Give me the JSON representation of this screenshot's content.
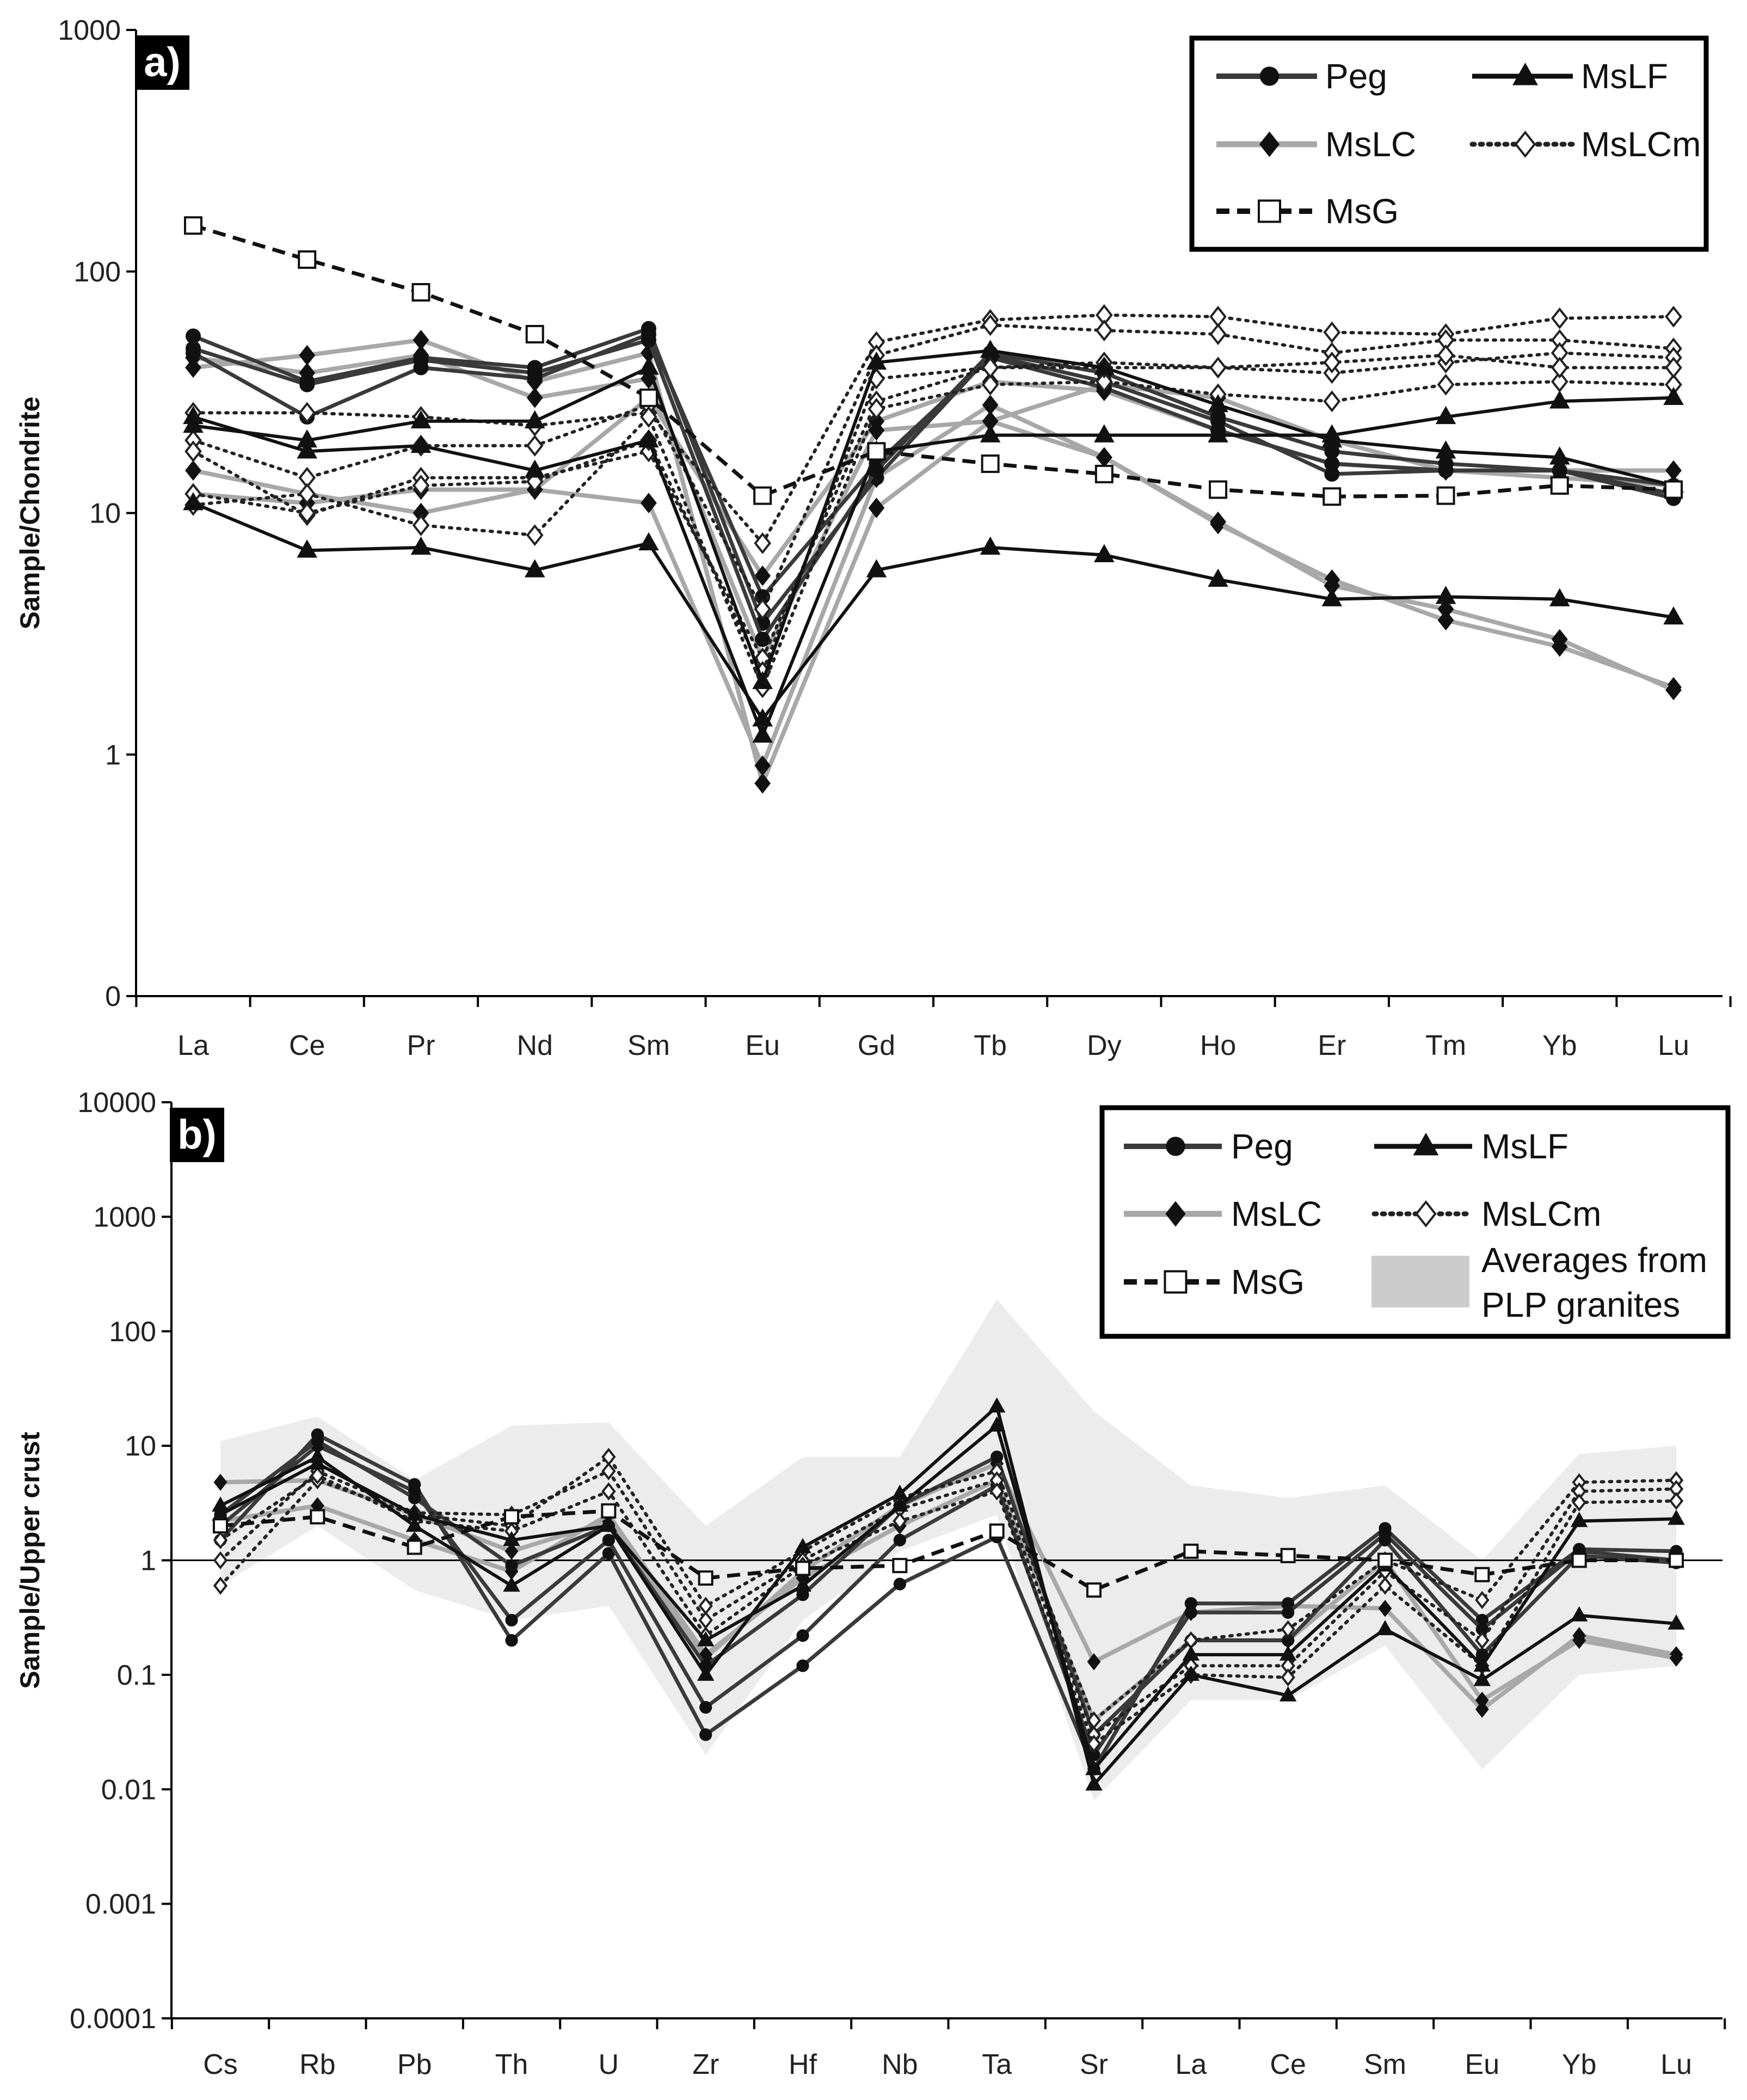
{
  "chart_data": [
    {
      "type": "line",
      "panel_label": "a)",
      "title": "",
      "xlabel": "",
      "ylabel": "Sample/Chondrite",
      "yscale": "log",
      "ylim": [
        0.1,
        1000
      ],
      "ytick_values": [
        0.1,
        1,
        10,
        100,
        1000
      ],
      "ytick_labels": [
        "0",
        "1",
        "10",
        "100",
        "1000"
      ],
      "categories": [
        "La",
        "Ce",
        "Pr",
        "Nd",
        "Sm",
        "Eu",
        "Gd",
        "Tb",
        "Dy",
        "Ho",
        "Er",
        "Tm",
        "Yb",
        "Lu"
      ],
      "legend": {
        "position": "top-right",
        "entries": [
          {
            "name": "Peg",
            "style": "peg"
          },
          {
            "name": "MsLF",
            "style": "mslf"
          },
          {
            "name": "MsLC",
            "style": "mslc"
          },
          {
            "name": "MsLCm",
            "style": "mslcm"
          },
          {
            "name": "MsG",
            "style": "msg"
          }
        ]
      },
      "series": [
        {
          "name": "Peg",
          "group": "peg",
          "values": [
            54,
            35,
            44,
            40,
            58,
            3.5,
            14,
            45,
            35,
            24,
            14.5,
            15,
            15,
            11.5
          ]
        },
        {
          "name": "Peg",
          "group": "peg",
          "values": [
            46,
            25,
            40,
            36,
            55,
            4.5,
            16,
            44,
            33,
            22,
            16,
            15,
            15,
            12
          ]
        },
        {
          "name": "Peg",
          "group": "peg",
          "values": [
            48,
            34,
            43,
            38,
            52,
            3.0,
            15,
            46,
            38,
            25,
            18,
            16,
            15,
            13
          ]
        },
        {
          "name": "MsLF",
          "group": "mslf",
          "values": [
            11,
            7,
            7.2,
            5.8,
            7.5,
            1.4,
            5.8,
            7.2,
            6.7,
            5.3,
            4.4,
            4.5,
            4.4,
            3.7
          ]
        },
        {
          "name": "MsLF",
          "group": "mslf",
          "values": [
            25,
            18,
            19,
            15,
            20,
            1.2,
            18,
            21,
            21,
            21,
            21,
            25,
            29,
            30
          ]
        },
        {
          "name": "MsLF",
          "group": "mslf",
          "values": [
            23,
            20,
            24,
            24,
            40,
            2.0,
            42,
            47,
            40,
            28,
            20,
            18,
            17,
            13
          ]
        },
        {
          "name": "MsLC",
          "group": "mslc",
          "values": [
            40,
            45,
            52,
            35,
            46,
            0.76,
            10.5,
            24,
            17,
            9,
            5.3,
            3.6,
            2.8,
            1.9
          ]
        },
        {
          "name": "MsLC",
          "group": "mslc",
          "values": [
            15,
            12,
            10,
            12.5,
            11,
            0.9,
            14,
            28,
            17,
            9.2,
            5.0,
            4.0,
            3.0,
            1.85
          ]
        },
        {
          "name": "MsLC",
          "group": "mslc",
          "values": [
            12,
            11,
            12.5,
            12.5,
            30,
            5.5,
            24,
            35,
            32,
            22,
            16,
            15,
            15,
            15
          ]
        },
        {
          "name": "MsLC",
          "group": "mslc",
          "values": [
            44,
            38,
            45,
            30,
            36,
            2.5,
            22,
            24,
            34,
            30,
            20,
            15,
            14,
            13
          ]
        },
        {
          "name": "MsLCm",
          "group": "mslcm",
          "values": [
            26,
            26,
            25,
            23,
            26,
            7.5,
            51,
            63,
            66,
            65,
            56,
            55,
            64,
            65
          ]
        },
        {
          "name": "MsLCm",
          "group": "mslcm",
          "values": [
            20,
            14,
            19,
            19,
            28,
            4.0,
            45,
            60,
            57,
            55,
            46,
            52,
            52,
            48
          ]
        },
        {
          "name": "MsLCm",
          "group": "mslcm",
          "values": [
            18,
            9.8,
            14,
            14,
            18,
            2.5,
            29,
            40,
            42,
            40,
            38,
            42,
            46,
            44
          ]
        },
        {
          "name": "MsLCm",
          "group": "mslcm",
          "values": [
            10.8,
            12,
            8.9,
            8.1,
            25,
            1.9,
            27,
            34,
            35,
            31,
            29,
            34,
            35,
            34
          ]
        },
        {
          "name": "MsLCm",
          "group": "mslcm",
          "values": [
            12,
            10,
            13,
            13.5,
            20,
            2.2,
            36,
            40,
            40,
            40,
            42,
            45,
            40,
            40
          ]
        },
        {
          "name": "MsG",
          "group": "msg",
          "values": [
            155,
            112,
            82,
            55,
            30,
            11.8,
            18,
            16,
            14.5,
            12.5,
            11.7,
            11.8,
            13,
            12.5
          ]
        }
      ]
    },
    {
      "type": "line",
      "panel_label": "b)",
      "title": "",
      "xlabel": "",
      "ylabel": "Sample/Upper crust",
      "yscale": "log",
      "ylim": [
        0.0001,
        10000
      ],
      "ytick_values": [
        0.0001,
        0.001,
        0.01,
        0.1,
        1,
        10,
        100,
        1000,
        10000
      ],
      "ytick_labels": [
        "0.0001",
        "0.001",
        "0.01",
        "0.1",
        "1",
        "10",
        "100",
        "1000",
        "10000"
      ],
      "reference_line": 1,
      "categories": [
        "Cs",
        "Rb",
        "Pb",
        "Th",
        "U",
        "Zr",
        "Hf",
        "Nb",
        "Ta",
        "Sr",
        "La",
        "Ce",
        "Sm",
        "Eu",
        "Yb",
        "Lu"
      ],
      "legend": {
        "position": "top-right",
        "entries": [
          {
            "name": "Peg",
            "style": "peg"
          },
          {
            "name": "MsLF",
            "style": "mslf"
          },
          {
            "name": "MsLC",
            "style": "mslc"
          },
          {
            "name": "MsLCm",
            "style": "mslcm"
          },
          {
            "name": "MsG",
            "style": "msg"
          },
          {
            "name": "Averages from PLP granites",
            "style": "band",
            "lines": [
              "Averages from",
              "PLP granites"
            ]
          }
        ]
      },
      "band": {
        "name": "Averages from PLP granites",
        "upper": [
          11,
          18,
          5,
          15,
          16,
          2,
          8,
          8,
          190,
          20,
          4.5,
          3.5,
          4.5,
          1,
          8.5,
          10
        ],
        "lower": [
          0.6,
          2,
          0.55,
          0.3,
          0.4,
          0.02,
          0.3,
          1.2,
          2.5,
          0.008,
          0.06,
          0.06,
          0.18,
          0.015,
          0.1,
          0.12
        ]
      },
      "series": [
        {
          "name": "Peg",
          "group": "peg",
          "values": [
            1.5,
            12.5,
            4.6,
            0.2,
            1.15,
            0.03,
            0.12,
            0.62,
            1.6,
            0.015,
            0.42,
            0.42,
            1.9,
            0.3,
            1.25,
            1.2
          ]
        },
        {
          "name": "Peg",
          "group": "peg",
          "values": [
            2,
            10,
            4,
            0.3,
            1.5,
            0.052,
            0.22,
            1.5,
            4.5,
            0.02,
            0.35,
            0.35,
            1.7,
            0.25,
            1.2,
            1.0
          ]
        },
        {
          "name": "Peg",
          "group": "peg",
          "values": [
            2.5,
            11,
            3.5,
            0.9,
            2.0,
            0.12,
            0.5,
            3.0,
            8.0,
            0.03,
            0.2,
            0.2,
            1.5,
            0.15,
            1.1,
            0.95
          ]
        },
        {
          "name": "MsLF",
          "group": "mslf",
          "values": [
            3,
            8,
            2,
            0.6,
            2.0,
            0.1,
            1.3,
            3.8,
            22,
            0.011,
            0.1,
            0.066,
            0.25,
            0.09,
            0.33,
            0.28
          ]
        },
        {
          "name": "MsLF",
          "group": "mslf",
          "values": [
            2.5,
            7,
            2.5,
            1.5,
            2.0,
            0.2,
            0.6,
            3.0,
            15,
            0.015,
            0.15,
            0.15,
            0.9,
            0.12,
            2.2,
            2.3
          ]
        },
        {
          "name": "MsLC",
          "group": "mslc",
          "values": [
            4.8,
            5,
            2.5,
            1.2,
            2.2,
            0.14,
            0.8,
            3.0,
            7.0,
            0.13,
            0.35,
            0.4,
            0.38,
            0.05,
            0.22,
            0.15
          ]
        },
        {
          "name": "MsLC",
          "group": "mslc",
          "values": [
            2.2,
            3,
            1.5,
            0.8,
            2.5,
            0.15,
            0.7,
            2.0,
            5.0,
            0.04,
            0.2,
            0.2,
            1.0,
            0.06,
            0.2,
            0.14
          ]
        },
        {
          "name": "MsLCm",
          "group": "mslcm",
          "values": [
            0.6,
            5,
            2.5,
            2.0,
            8.0,
            0.4,
            1.2,
            3.5,
            6.0,
            0.04,
            0.2,
            0.25,
            1.0,
            0.45,
            4.8,
            5.0
          ]
        },
        {
          "name": "MsLCm",
          "group": "mslcm",
          "values": [
            1.0,
            6,
            2.6,
            2.5,
            6.0,
            0.3,
            1.0,
            2.8,
            5.0,
            0.03,
            0.12,
            0.12,
            0.8,
            0.2,
            4.0,
            4.2
          ]
        },
        {
          "name": "MsLCm",
          "group": "mslcm",
          "values": [
            1.5,
            5.5,
            2.2,
            1.8,
            4.0,
            0.22,
            0.9,
            2.2,
            4.0,
            0.025,
            0.1,
            0.095,
            0.6,
            0.12,
            3.2,
            3.3
          ]
        },
        {
          "name": "MsG",
          "group": "msg",
          "values": [
            2.0,
            2.4,
            1.3,
            2.4,
            2.7,
            0.7,
            0.85,
            0.9,
            1.8,
            0.55,
            1.2,
            1.1,
            1.0,
            0.75,
            1.0,
            1.0
          ]
        }
      ]
    }
  ]
}
